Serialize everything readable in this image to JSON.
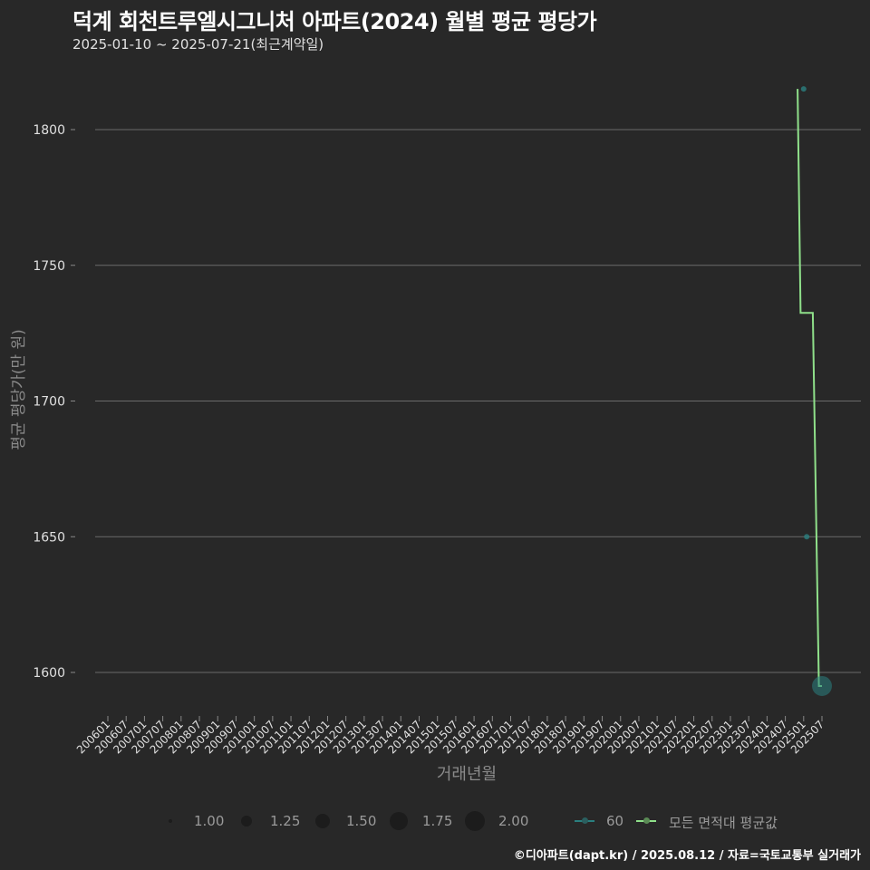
{
  "header": {
    "title": "덕계 회천트루엘시그니처 아파트(2024) 월별 평균 평당가",
    "subtitle": "2025-01-10 ~ 2025-07-21(최근계약일)"
  },
  "axes": {
    "ylabel": "평균 평당가(만 원)",
    "xlabel": "거래년월"
  },
  "legend": {
    "size_items": [
      {
        "label": "1.00",
        "r": 2
      },
      {
        "label": "1.25",
        "r": 6
      },
      {
        "label": "1.50",
        "r": 8
      },
      {
        "label": "1.75",
        "r": 10
      },
      {
        "label": "2.00",
        "r": 11
      }
    ],
    "color_items": [
      {
        "label": "60",
        "color": "#2a7f7f"
      },
      {
        "label": "모든 면적대 평균값",
        "color": "#8fe08a"
      }
    ]
  },
  "footer": {
    "credit": "©디아파트(dapt.kr) / 2025.08.12 / 자료=국토교통부 실거래가"
  },
  "colors": {
    "background": "#282828",
    "grid": "#6a6a6a",
    "avg_line": "#8fe08a",
    "area60": "#2a7f7f"
  },
  "chart_data": {
    "type": "line",
    "title": "덕계 회천트루엘시그니처 아파트(2024) 월별 평균 평당가",
    "subtitle": "2025-01-10 ~ 2025-07-21(최근계약일)",
    "xlabel": "거래년월",
    "ylabel": "평균 평당가(만 원)",
    "ylim": [
      1587,
      1822
    ],
    "yticks": [
      1600,
      1650,
      1700,
      1750,
      1800
    ],
    "grid": true,
    "legend_position": "bottom",
    "x_ticks": [
      "200601",
      "200607",
      "200701",
      "200707",
      "200801",
      "200807",
      "200901",
      "200907",
      "201001",
      "201007",
      "201101",
      "201107",
      "201201",
      "201207",
      "201301",
      "201307",
      "201401",
      "201407",
      "201501",
      "201507",
      "201601",
      "201607",
      "201701",
      "201707",
      "201801",
      "201807",
      "201901",
      "201907",
      "202001",
      "202007",
      "202101",
      "202107",
      "202201",
      "202207",
      "202301",
      "202307",
      "202401",
      "202407",
      "202501",
      "202507"
    ],
    "series": [
      {
        "name": "60",
        "kind": "points",
        "points": [
          {
            "x": "202501",
            "y": 1815,
            "size": 1.0
          },
          {
            "x": "202502",
            "y": 1650,
            "size": 1.0
          },
          {
            "x": "202507",
            "y": 1595,
            "size": 2.0
          }
        ]
      },
      {
        "name": "모든 면적대 평균값",
        "kind": "step-line",
        "points": [
          {
            "x": "202411",
            "y": 1815
          },
          {
            "x": "202412",
            "y": 1732.5
          },
          {
            "x": "202504",
            "y": 1732.5
          },
          {
            "x": "202506",
            "y": 1595
          },
          {
            "x": "202507",
            "y": 1595
          }
        ]
      }
    ]
  }
}
